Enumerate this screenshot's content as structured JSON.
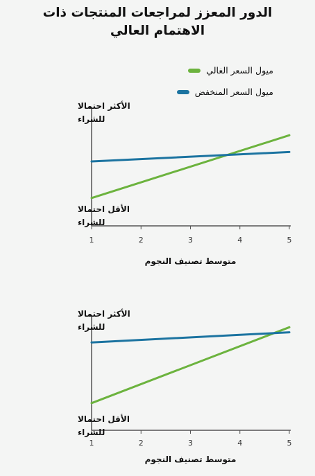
{
  "title": {
    "line1": "الدور المعزز لمراجعات المنتجات ذات",
    "line2": "الاهتمام العالي"
  },
  "legend": [
    {
      "label": "ميول السعر الغالي",
      "color": "#6cb33e"
    },
    {
      "label": "ميول السعر المنخفض",
      "color": "#1b73a0"
    }
  ],
  "chart_data": [
    {
      "type": "line",
      "x": [
        1,
        5
      ],
      "xlabel": "متوسط تصنيف النجوم",
      "xticks": [
        "1",
        "2",
        "3",
        "4",
        "5"
      ],
      "xlim": [
        1,
        5
      ],
      "ylim": [
        0,
        1
      ],
      "ylabel_top": [
        "الأكثر احتمالا",
        "للشراء"
      ],
      "ylabel_bottom": [
        "الأقل احتمالا",
        "للشراء"
      ],
      "series": [
        {
          "name": "ميول السعر الغالي",
          "color": "#6cb33e",
          "values": [
            0.2,
            0.8
          ]
        },
        {
          "name": "ميول السعر المنخفض",
          "color": "#1b73a0",
          "values": [
            0.55,
            0.64
          ]
        }
      ]
    },
    {
      "type": "line",
      "x": [
        1,
        5
      ],
      "xlabel": "متوسط تصنيف النجوم",
      "xticks": [
        "1",
        "2",
        "3",
        "4",
        "5"
      ],
      "xlim": [
        1,
        5
      ],
      "ylim": [
        0,
        1
      ],
      "ylabel_top": [
        "الأكثر احتمالا",
        "للشراء"
      ],
      "ylabel_bottom": [
        "الأقل احتمالا",
        "للشراء"
      ],
      "series": [
        {
          "name": "ميول السعر الغالي",
          "color": "#6cb33e",
          "values": [
            0.2,
            0.95
          ]
        },
        {
          "name": "ميول السعر المنخفض",
          "color": "#1b73a0",
          "values": [
            0.8,
            0.9
          ]
        }
      ]
    }
  ]
}
